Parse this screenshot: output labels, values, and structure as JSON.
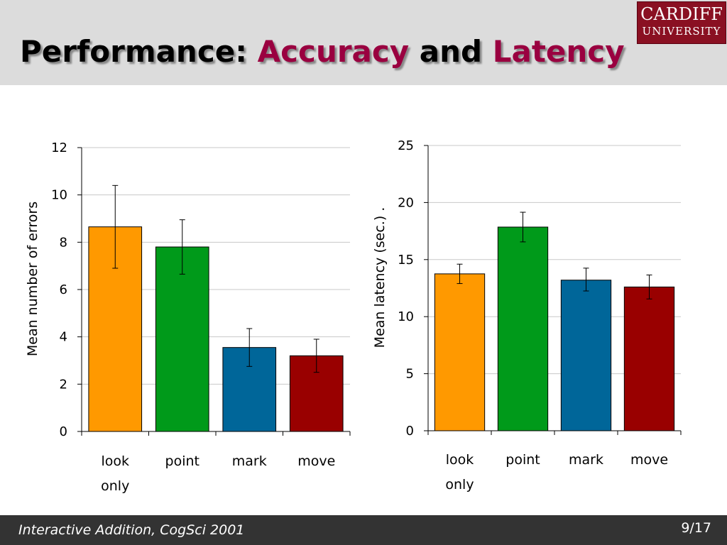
{
  "slide": {
    "title_part1": "Performance: ",
    "title_part2": "Accuracy",
    "title_part3": " and ",
    "title_part4": "Latency",
    "logo_line1": "CARDIFF",
    "logo_line2": "UNIVERSITY",
    "footer": "Interactive Addition, CogSci 2001",
    "page": "9/17"
  },
  "colors": {
    "accent": "#9a0040",
    "bar_colors": [
      "#ff9900",
      "#009a1a",
      "#006699",
      "#990000"
    ]
  },
  "chart_data": [
    {
      "type": "bar",
      "categories": [
        "look only",
        "point",
        "mark",
        "move"
      ],
      "category_lines": [
        [
          "look",
          "only"
        ],
        [
          "point"
        ],
        [
          "mark"
        ],
        [
          "move"
        ]
      ],
      "values": [
        8.65,
        7.8,
        3.55,
        3.2
      ],
      "error_low": [
        6.9,
        6.65,
        2.75,
        2.5
      ],
      "error_high": [
        10.4,
        8.95,
        4.35,
        3.9
      ],
      "ylabel": "Mean number of errors",
      "ylim": [
        0,
        12
      ],
      "yticks": [
        0,
        2,
        4,
        6,
        8,
        10,
        12
      ],
      "grid": true
    },
    {
      "type": "bar",
      "categories": [
        "look only",
        "point",
        "mark",
        "move"
      ],
      "category_lines": [
        [
          "look",
          "only"
        ],
        [
          "point"
        ],
        [
          "mark"
        ],
        [
          "move"
        ]
      ],
      "values": [
        13.75,
        17.85,
        13.2,
        12.6
      ],
      "error_low": [
        12.9,
        16.55,
        12.25,
        11.55
      ],
      "error_high": [
        14.6,
        19.15,
        14.25,
        13.65
      ],
      "ylabel": "Mean latency (sec.) .",
      "ylim": [
        0,
        25
      ],
      "yticks": [
        0,
        5,
        10,
        15,
        20,
        25
      ],
      "grid": true
    }
  ]
}
